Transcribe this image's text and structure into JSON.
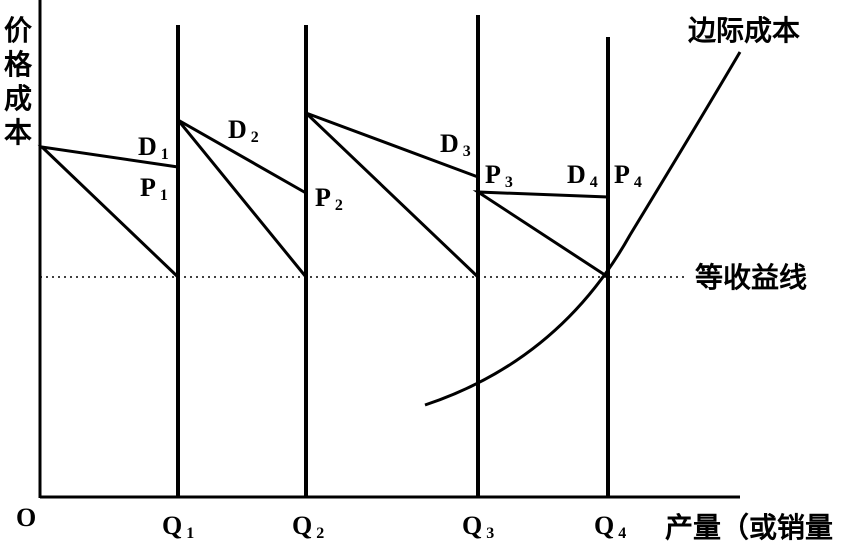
{
  "y_axis_label": [
    "价",
    "格",
    "成",
    "本"
  ],
  "x_axis_label": "产量（或销量",
  "origin": "O",
  "marginal_cost_label": "边际成本",
  "equal_revenue_label": "等收益线",
  "quantities": [
    {
      "main": "Q",
      "sub": "1"
    },
    {
      "main": "Q",
      "sub": "2"
    },
    {
      "main": "Q",
      "sub": "3"
    },
    {
      "main": "Q",
      "sub": "4"
    }
  ],
  "demand_labels": [
    {
      "main": "D",
      "sub": "1"
    },
    {
      "main": "D",
      "sub": "2"
    },
    {
      "main": "D",
      "sub": "3"
    },
    {
      "main": "D",
      "sub": "4"
    }
  ],
  "price_labels": [
    {
      "main": "P",
      "sub": "1"
    },
    {
      "main": "P",
      "sub": "2"
    },
    {
      "main": "P",
      "sub": "3"
    },
    {
      "main": "P",
      "sub": "4"
    }
  ]
}
